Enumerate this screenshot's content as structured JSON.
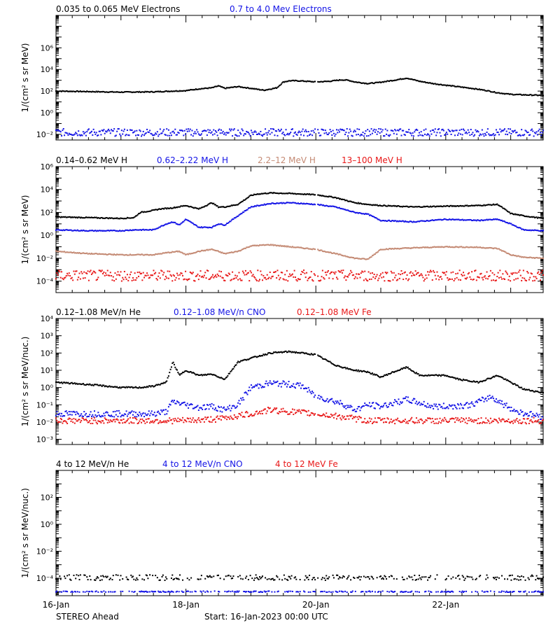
{
  "footer": {
    "left": "STEREO Ahead",
    "center": "Start: 16-Jan-2023 00:00 UTC"
  },
  "colors": {
    "black": "#000000",
    "blue": "#1414e6",
    "tan": "#c48a74",
    "red": "#e81818"
  },
  "chart_data": [
    {
      "type": "scatter",
      "panel": "electrons",
      "ylabel": "1/(cm² s sr MeV)",
      "yscale": "log",
      "ylim": [
        0.003,
        1000000000
      ],
      "yticks": [
        {
          "v": 0.01,
          "l": "10⁻²"
        },
        {
          "v": 1,
          "l": "10⁰"
        },
        {
          "v": 100,
          "l": "10²"
        },
        {
          "v": 10000,
          "l": "10⁴"
        },
        {
          "v": 1000000,
          "l": "10⁶"
        }
      ],
      "xlim": [
        0,
        7.5
      ],
      "series": [
        {
          "name": "0.035 to 0.065 MeV Electrons",
          "color": "black",
          "days": [
            0,
            0.5,
            1,
            1.5,
            1.8,
            2,
            2.2,
            2.4,
            2.5,
            2.6,
            2.8,
            3,
            3.2,
            3.4,
            3.5,
            3.6,
            3.7,
            3.8,
            4,
            4.2,
            4.4,
            4.5,
            4.6,
            4.8,
            4.95,
            5.2,
            5.4,
            5.6,
            5.8,
            6,
            6.2,
            6.4,
            6.6,
            6.8,
            7,
            7.2,
            7.5
          ],
          "values": [
            100,
            90,
            80,
            85,
            100,
            110,
            160,
            200,
            300,
            180,
            260,
            180,
            120,
            200,
            700,
            900,
            900,
            850,
            700,
            800,
            1100,
            1000,
            700,
            500,
            600,
            1000,
            1600,
            800,
            500,
            350,
            250,
            180,
            120,
            70,
            50,
            45,
            40
          ],
          "gaps": [
            [
              4.1,
              4.2
            ],
            [
              4.7,
              4.75
            ]
          ]
        },
        {
          "name": "0.7 to 4.0 Mev Electrons",
          "color": "blue",
          "scatter": true,
          "level": 0.015,
          "spread": 2.2
        }
      ]
    },
    {
      "type": "scatter",
      "panel": "protons",
      "ylabel": "1/(cm² s sr MeV)",
      "yscale": "log",
      "ylim": [
        1e-05,
        1000000
      ],
      "yticks": [
        {
          "v": 0.0001,
          "l": "10⁻⁴"
        },
        {
          "v": 0.01,
          "l": "10⁻²"
        },
        {
          "v": 1,
          "l": "10⁰"
        },
        {
          "v": 100,
          "l": "10²"
        },
        {
          "v": 10000,
          "l": "10⁴"
        },
        {
          "v": 1000000,
          "l": "10⁶"
        }
      ],
      "xlim": [
        0,
        7.5
      ],
      "series": [
        {
          "name": "0.14–0.62 MeV H",
          "color": "black",
          "days": [
            0,
            0.5,
            1,
            1.2,
            1.3,
            1.5,
            1.6,
            1.8,
            2,
            2.2,
            2.4,
            2.5,
            2.6,
            2.8,
            3,
            3.1,
            3.3,
            3.6,
            4,
            4.3,
            4.6,
            4.8,
            5,
            5.5,
            6,
            6.5,
            6.8,
            7,
            7.2,
            7.5
          ],
          "values": [
            40,
            35,
            30,
            35,
            100,
            150,
            200,
            250,
            400,
            200,
            700,
            300,
            300,
            500,
            3000,
            4000,
            5000,
            4500,
            3500,
            2000,
            700,
            500,
            400,
            300,
            350,
            400,
            500,
            80,
            50,
            30
          ]
        },
        {
          "name": "0.62–2.22 MeV H",
          "color": "blue",
          "days": [
            0,
            0.5,
            1,
            1.2,
            1.5,
            1.7,
            1.8,
            1.9,
            2,
            2.2,
            2.4,
            2.5,
            2.6,
            2.8,
            3,
            3.3,
            3.6,
            4,
            4.3,
            4.6,
            4.8,
            5,
            5.5,
            6,
            6.5,
            6.8,
            7,
            7.2,
            7.5
          ],
          "values": [
            3,
            2.5,
            2.5,
            3,
            3,
            10,
            15,
            8,
            25,
            5,
            5,
            10,
            8,
            50,
            300,
            600,
            700,
            500,
            300,
            100,
            70,
            20,
            15,
            25,
            20,
            25,
            10,
            3,
            2.5
          ]
        },
        {
          "name": "2.2–12 MeV H",
          "color": "tan",
          "days": [
            0,
            0.5,
            1,
            1.5,
            1.7,
            1.9,
            2,
            2.2,
            2.4,
            2.6,
            2.8,
            3,
            3.3,
            3.6,
            4,
            4.3,
            4.6,
            4.8,
            5,
            5.5,
            6,
            6.5,
            6.8,
            7,
            7.2,
            7.5
          ],
          "values": [
            0.04,
            0.025,
            0.02,
            0.02,
            0.03,
            0.04,
            0.02,
            0.04,
            0.06,
            0.025,
            0.04,
            0.12,
            0.15,
            0.1,
            0.06,
            0.025,
            0.01,
            0.008,
            0.06,
            0.08,
            0.1,
            0.09,
            0.07,
            0.02,
            0.012,
            0.01
          ]
        },
        {
          "name": "13–100 MeV H",
          "color": "red",
          "scatter": true,
          "level": 0.0003,
          "spread": 3
        }
      ]
    },
    {
      "type": "scatter",
      "panel": "ions-low",
      "ylabel": "1/(cm² s sr MeV/nuc.)",
      "yscale": "log",
      "ylim": [
        0.0005,
        10000
      ],
      "yticks": [
        {
          "v": 0.001,
          "l": "10⁻³"
        },
        {
          "v": 0.01,
          "l": "10⁻²"
        },
        {
          "v": 0.1,
          "l": "10⁻¹"
        },
        {
          "v": 1,
          "l": "10⁰"
        },
        {
          "v": 10,
          "l": "10¹"
        },
        {
          "v": 100,
          "l": "10²"
        },
        {
          "v": 1000,
          "l": "10³"
        },
        {
          "v": 10000,
          "l": "10⁴"
        }
      ],
      "xlim": [
        0,
        7.5
      ],
      "series": [
        {
          "name": "0.12–1.08 MeV/n He",
          "color": "black",
          "days": [
            0,
            0.5,
            1,
            1.3,
            1.5,
            1.7,
            1.8,
            1.9,
            2,
            2.2,
            2.4,
            2.6,
            2.8,
            3,
            3.3,
            3.6,
            4,
            4.3,
            4.5,
            4.6,
            4.8,
            5,
            5.2,
            5.4,
            5.6,
            5.8,
            6,
            6.2,
            6.5,
            6.8,
            7,
            7.2,
            7.5
          ],
          "values": [
            2,
            1.5,
            1,
            1,
            1.2,
            2,
            30,
            5,
            10,
            5,
            6,
            3,
            30,
            50,
            100,
            120,
            80,
            20,
            12,
            10,
            8,
            4,
            8,
            15,
            5,
            5,
            5,
            3,
            2,
            5,
            2,
            0.8,
            0.5
          ]
        },
        {
          "name": "0.12–1.08 MeV/n CNO",
          "color": "blue",
          "days": [
            0,
            0.8,
            1.5,
            1.7,
            1.8,
            2,
            2.2,
            2.4,
            2.6,
            2.8,
            3,
            3.3,
            3.6,
            3.8,
            4,
            4.2,
            4.4,
            4.6,
            4.8,
            5,
            5.4,
            5.8,
            6,
            6.4,
            6.7,
            6.9,
            7.1,
            7.5
          ],
          "values": [
            0.03,
            0.03,
            0.03,
            0.04,
            0.15,
            0.1,
            0.07,
            0.08,
            0.05,
            0.1,
            1,
            1.8,
            1.5,
            1.2,
            0.3,
            0.2,
            0.12,
            0.05,
            0.1,
            0.08,
            0.2,
            0.08,
            0.08,
            0.1,
            0.3,
            0.1,
            0.04,
            0.02
          ],
          "scatter": true
        },
        {
          "name": "0.12–1.08 MeV Fe",
          "color": "red",
          "days": [
            0,
            1,
            2,
            2.5,
            3,
            3.3,
            3.6,
            4,
            4.4,
            4.8,
            5.5,
            6.5,
            7.5
          ],
          "values": [
            0.012,
            0.012,
            0.012,
            0.015,
            0.03,
            0.05,
            0.04,
            0.03,
            0.02,
            0.012,
            0.012,
            0.012,
            0.012
          ],
          "scatter": true
        }
      ]
    },
    {
      "type": "scatter",
      "panel": "ions-high",
      "ylabel": "1/(cm² s sr MeV/nuc.)",
      "yscale": "log",
      "ylim": [
        5e-06,
        10000
      ],
      "yticks": [
        {
          "v": 0.0001,
          "l": "10⁻⁴"
        },
        {
          "v": 0.01,
          "l": "10⁻²"
        },
        {
          "v": 1,
          "l": "10⁰"
        },
        {
          "v": 100,
          "l": "10²"
        }
      ],
      "xlim": [
        0,
        7.5
      ],
      "series": [
        {
          "name": "4 to 12 MeV/n He",
          "color": "black",
          "scatter": true,
          "level": 0.00011,
          "spread": 1.6
        },
        {
          "name": "4 to 12 MeV/n CNO",
          "color": "blue",
          "scatter": true,
          "level": 1e-05,
          "spread": 1.1
        },
        {
          "name": "4 to 12 MeV Fe",
          "color": "red",
          "scatter": true,
          "level": 1e-07,
          "spread": 1
        }
      ]
    }
  ],
  "x_ticks": [
    {
      "day": 0,
      "label": "16-Jan"
    },
    {
      "day": 2,
      "label": "18-Jan"
    },
    {
      "day": 4,
      "label": "20-Jan"
    },
    {
      "day": 6,
      "label": "22-Jan"
    }
  ]
}
